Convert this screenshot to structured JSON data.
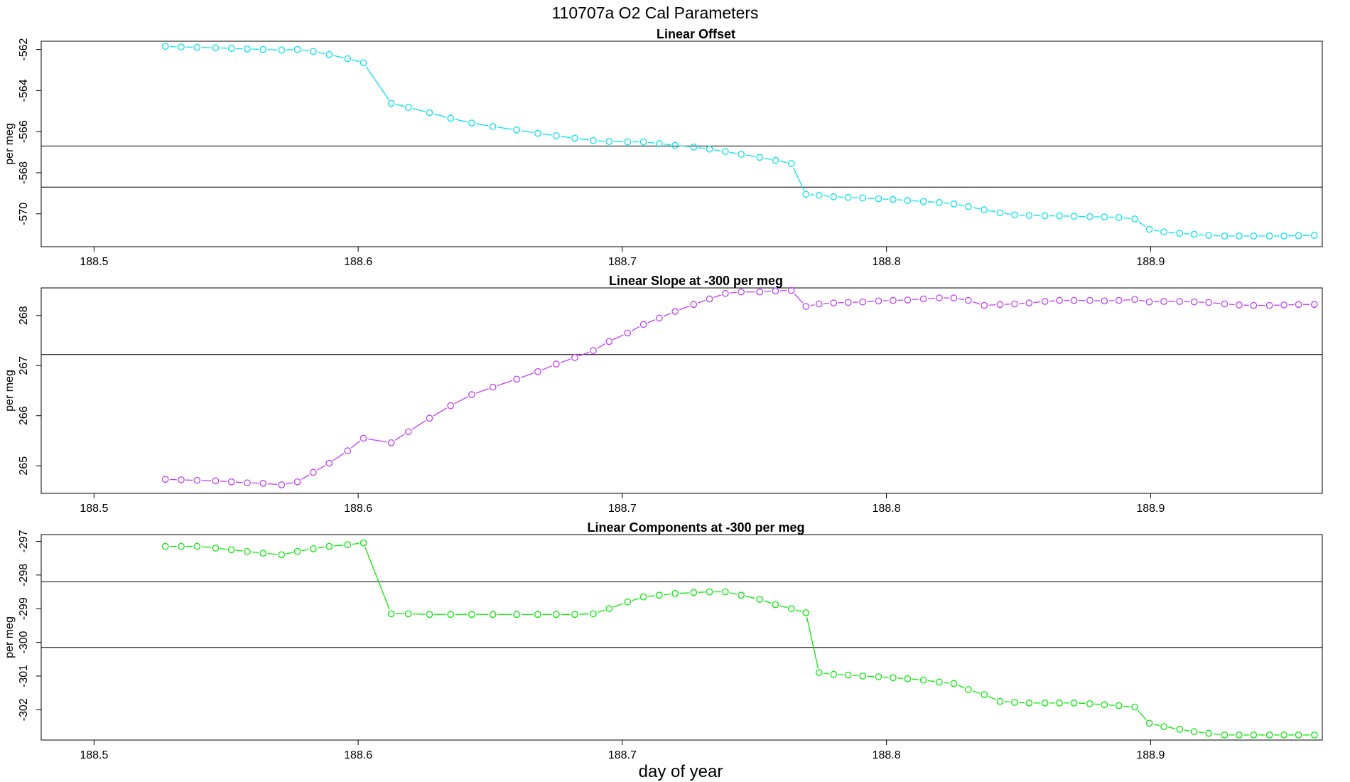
{
  "figure": {
    "title": "110707a   O2 Cal Parameters",
    "xlabel": "day of year"
  },
  "chart_data": [
    {
      "type": "line",
      "title": "Linear Offset",
      "ylabel": "per meg",
      "color": "#00e5ee",
      "xlim": [
        188.48,
        188.965
      ],
      "ylim": [
        -571.6,
        -561.6
      ],
      "xticks": [
        "188.5",
        "188.6",
        "188.7",
        "188.8",
        "188.9"
      ],
      "yticks": [
        "-562",
        "-564",
        "-566",
        "-568",
        "-570"
      ],
      "hlines": [
        -566.7,
        -568.7
      ],
      "x": [
        188.527,
        188.533,
        188.539,
        188.546,
        188.552,
        188.558,
        188.564,
        188.571,
        188.577,
        188.583,
        188.589,
        188.596,
        188.602,
        188.6125,
        188.619,
        188.627,
        188.635,
        188.643,
        188.651,
        188.66,
        188.668,
        188.675,
        188.682,
        188.689,
        188.695,
        188.702,
        188.708,
        188.714,
        188.72,
        188.727,
        188.733,
        188.739,
        188.745,
        188.752,
        188.758,
        188.764,
        188.7695,
        188.7745,
        188.78,
        188.7855,
        188.791,
        188.797,
        188.8025,
        188.808,
        188.814,
        188.82,
        188.8255,
        188.831,
        188.837,
        188.843,
        188.8485,
        188.854,
        188.86,
        188.8655,
        188.871,
        188.877,
        188.8825,
        188.888,
        188.894,
        188.8995,
        188.905,
        188.911,
        188.9165,
        188.922,
        188.928,
        188.9335,
        188.939,
        188.945,
        188.9505,
        188.956,
        188.962
      ],
      "y": [
        -561.85,
        -561.88,
        -561.9,
        -561.92,
        -561.95,
        -561.98,
        -562.0,
        -562.03,
        -562.0,
        -562.1,
        -562.25,
        -562.45,
        -562.65,
        -564.62,
        -564.82,
        -565.08,
        -565.35,
        -565.58,
        -565.75,
        -565.92,
        -566.08,
        -566.2,
        -566.32,
        -566.43,
        -566.48,
        -566.5,
        -566.5,
        -566.58,
        -566.67,
        -566.75,
        -566.85,
        -566.97,
        -567.1,
        -567.25,
        -567.4,
        -567.55,
        -569.05,
        -569.1,
        -569.17,
        -569.2,
        -569.23,
        -569.27,
        -569.3,
        -569.35,
        -569.4,
        -569.45,
        -569.52,
        -569.65,
        -569.8,
        -569.95,
        -570.05,
        -570.08,
        -570.1,
        -570.1,
        -570.12,
        -570.14,
        -570.15,
        -570.18,
        -570.25,
        -570.75,
        -570.88,
        -570.95,
        -571.0,
        -571.05,
        -571.08,
        -571.08,
        -571.08,
        -571.08,
        -571.08,
        -571.06,
        -571.05
      ]
    },
    {
      "type": "line",
      "title": "Linear Slope at -300 per meg",
      "ylabel": "per meg",
      "color": "#bf3eff",
      "xlim": [
        188.48,
        188.965
      ],
      "ylim": [
        264.45,
        268.55
      ],
      "xticks": [
        "188.5",
        "188.6",
        "188.7",
        "188.8",
        "188.9"
      ],
      "yticks": [
        "268",
        "267",
        "266",
        "265"
      ],
      "hlines": [
        267.22
      ],
      "x": [
        188.527,
        188.533,
        188.539,
        188.546,
        188.552,
        188.558,
        188.564,
        188.571,
        188.577,
        188.583,
        188.589,
        188.596,
        188.602,
        188.6125,
        188.619,
        188.627,
        188.635,
        188.643,
        188.651,
        188.66,
        188.668,
        188.675,
        188.682,
        188.689,
        188.695,
        188.702,
        188.708,
        188.714,
        188.72,
        188.727,
        188.733,
        188.739,
        188.745,
        188.752,
        188.758,
        188.764,
        188.7695,
        188.7745,
        188.78,
        188.7855,
        188.791,
        188.797,
        188.8025,
        188.808,
        188.814,
        188.82,
        188.8255,
        188.831,
        188.837,
        188.843,
        188.8485,
        188.854,
        188.86,
        188.8655,
        188.871,
        188.877,
        188.8825,
        188.888,
        188.894,
        188.8995,
        188.905,
        188.911,
        188.9165,
        188.922,
        188.928,
        188.9335,
        188.939,
        188.945,
        188.9505,
        188.956,
        188.962
      ],
      "y": [
        264.73,
        264.72,
        264.71,
        264.7,
        264.68,
        264.66,
        264.65,
        264.62,
        264.68,
        264.87,
        265.05,
        265.3,
        265.55,
        265.46,
        265.68,
        265.95,
        266.2,
        266.42,
        266.57,
        266.73,
        266.88,
        267.03,
        267.16,
        267.3,
        267.48,
        267.65,
        267.82,
        267.95,
        268.08,
        268.22,
        268.33,
        268.44,
        268.47,
        268.47,
        268.49,
        268.5,
        268.18,
        268.23,
        268.25,
        268.26,
        268.27,
        268.29,
        268.3,
        268.31,
        268.33,
        268.35,
        268.35,
        268.3,
        268.2,
        268.22,
        268.23,
        268.25,
        268.28,
        268.3,
        268.3,
        268.3,
        268.29,
        268.3,
        268.32,
        268.27,
        268.28,
        268.28,
        268.27,
        268.26,
        268.23,
        268.21,
        268.2,
        268.2,
        268.21,
        268.22,
        268.22
      ]
    },
    {
      "type": "line",
      "title": "Linear Components at -300 per meg",
      "ylabel": "per meg",
      "color": "#00ee00",
      "xlim": [
        188.48,
        188.965
      ],
      "ylim": [
        -302.9,
        -296.8
      ],
      "xticks": [
        "188.5",
        "188.6",
        "188.7",
        "188.8",
        "188.9"
      ],
      "yticks": [
        "-297",
        "-298",
        "-299",
        "-300",
        "-301",
        "-302"
      ],
      "hlines": [
        -298.2,
        -300.15
      ],
      "x": [
        188.527,
        188.533,
        188.539,
        188.546,
        188.552,
        188.558,
        188.564,
        188.571,
        188.577,
        188.583,
        188.589,
        188.596,
        188.602,
        188.6125,
        188.619,
        188.627,
        188.635,
        188.643,
        188.651,
        188.66,
        188.668,
        188.675,
        188.682,
        188.689,
        188.695,
        188.702,
        188.708,
        188.714,
        188.72,
        188.727,
        188.733,
        188.739,
        188.745,
        188.752,
        188.758,
        188.764,
        188.7695,
        188.7745,
        188.78,
        188.7855,
        188.791,
        188.797,
        188.8025,
        188.808,
        188.814,
        188.82,
        188.8255,
        188.831,
        188.837,
        188.843,
        188.8485,
        188.854,
        188.86,
        188.8655,
        188.871,
        188.877,
        188.8825,
        188.888,
        188.894,
        188.8995,
        188.905,
        188.911,
        188.9165,
        188.922,
        188.928,
        188.9335,
        188.939,
        188.945,
        188.9505,
        188.956,
        188.962
      ],
      "y": [
        -297.15,
        -297.15,
        -297.15,
        -297.2,
        -297.25,
        -297.3,
        -297.35,
        -297.4,
        -297.3,
        -297.22,
        -297.15,
        -297.1,
        -297.05,
        -299.15,
        -299.15,
        -299.17,
        -299.17,
        -299.17,
        -299.17,
        -299.17,
        -299.17,
        -299.17,
        -299.17,
        -299.15,
        -299.0,
        -298.8,
        -298.65,
        -298.6,
        -298.55,
        -298.52,
        -298.5,
        -298.5,
        -298.6,
        -298.72,
        -298.88,
        -299.0,
        -299.12,
        -300.9,
        -300.95,
        -300.97,
        -301.0,
        -301.02,
        -301.05,
        -301.08,
        -301.12,
        -301.18,
        -301.22,
        -301.4,
        -301.55,
        -301.75,
        -301.78,
        -301.8,
        -301.8,
        -301.8,
        -301.8,
        -301.82,
        -301.85,
        -301.88,
        -301.92,
        -302.4,
        -302.5,
        -302.58,
        -302.65,
        -302.7,
        -302.75,
        -302.75,
        -302.75,
        -302.75,
        -302.75,
        -302.75,
        -302.75
      ]
    }
  ]
}
